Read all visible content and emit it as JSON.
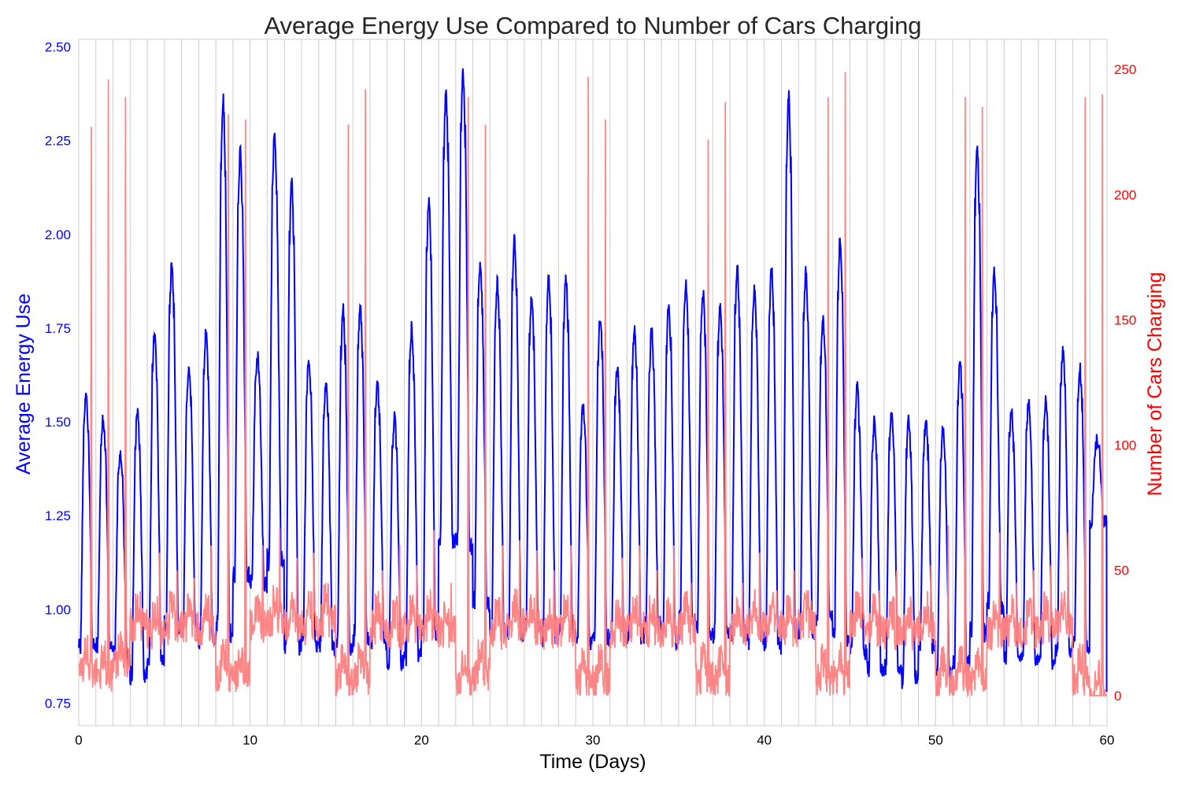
{
  "chart_data": {
    "type": "line",
    "title": "Average Energy Use Compared to Number of Cars Charging",
    "xlabel": "Time (Days)",
    "ylabel_left": "Average Energy Use",
    "ylabel_right": "Number of Cars Charging",
    "xlim": [
      0,
      60
    ],
    "ylim_left": [
      0.69,
      2.52
    ],
    "ylim_right": [
      -12,
      262
    ],
    "x_ticks": [
      0,
      10,
      20,
      30,
      40,
      50,
      60
    ],
    "x_tick_labels": [
      "0",
      "10",
      "20",
      "30",
      "40",
      "50",
      "60"
    ],
    "y_left_ticks": [
      0.75,
      1.0,
      1.25,
      1.5,
      1.75,
      2.0,
      2.25,
      2.5
    ],
    "y_left_tick_labels": [
      "0.75",
      "1.00",
      "1.25",
      "1.50",
      "1.75",
      "2.00",
      "2.25",
      "2.50"
    ],
    "y_right_ticks": [
      0,
      50,
      100,
      150,
      200,
      250
    ],
    "y_right_tick_labels": [
      "0",
      "50",
      "100",
      "150",
      "200",
      "250"
    ],
    "grid": "vertical lines at each day",
    "legend": "none",
    "colors": {
      "energy": "#0000ff",
      "cars": "#ff7f7f",
      "overlap": "#800080"
    },
    "series": [
      {
        "axis": "left",
        "color": "#0000ff",
        "daily": {
          "day": [
            0,
            1,
            2,
            3,
            4,
            5,
            6,
            7,
            8,
            9,
            10,
            11,
            12,
            13,
            14,
            15,
            16,
            17,
            18,
            19,
            20,
            21,
            22,
            23,
            24,
            25,
            26,
            27,
            28,
            29,
            30,
            31,
            32,
            33,
            34,
            35,
            36,
            37,
            38,
            39,
            40,
            41,
            42,
            43,
            44,
            45,
            46,
            47,
            48,
            49,
            50,
            51,
            52,
            53,
            54,
            55,
            56,
            57,
            58,
            59
          ],
          "min": [
            0.85,
            0.86,
            0.84,
            0.77,
            0.8,
            0.88,
            0.9,
            0.87,
            0.83,
            1.01,
            1.02,
            1.05,
            0.82,
            0.86,
            0.85,
            0.84,
            0.86,
            0.86,
            0.81,
            0.82,
            0.85,
            1.1,
            1.07,
            0.95,
            0.87,
            0.86,
            0.88,
            0.86,
            0.87,
            0.87,
            0.86,
            0.87,
            0.87,
            0.91,
            0.86,
            0.9,
            0.88,
            0.87,
            0.87,
            0.86,
            0.84,
            0.85,
            0.87,
            0.92,
            0.85,
            0.84,
            0.79,
            0.8,
            0.77,
            0.86,
            0.79,
            0.8,
            0.85,
            0.95,
            0.83,
            0.82,
            0.81,
            0.83,
            0.85,
            1.22
          ],
          "max": [
            1.57,
            1.51,
            1.42,
            1.53,
            1.74,
            1.92,
            1.65,
            1.74,
            2.36,
            2.22,
            1.68,
            2.27,
            2.14,
            1.67,
            1.6,
            1.8,
            1.81,
            1.6,
            1.51,
            1.75,
            2.09,
            2.37,
            2.43,
            1.92,
            1.87,
            1.99,
            1.83,
            1.88,
            1.89,
            1.54,
            1.78,
            1.64,
            1.74,
            1.74,
            1.82,
            1.87,
            1.85,
            1.81,
            1.91,
            1.86,
            1.91,
            2.37,
            1.9,
            1.78,
            1.98,
            1.59,
            1.5,
            1.52,
            1.5,
            1.5,
            1.48,
            1.66,
            2.23,
            1.9,
            1.53,
            1.55,
            1.56,
            1.69,
            1.64,
            1.45
          ]
        },
        "end_value": 0.78
      },
      {
        "axis": "right",
        "color": "#ff7f7f",
        "daily": {
          "day": [
            0,
            1,
            2,
            3,
            4,
            5,
            6,
            7,
            8,
            9,
            10,
            11,
            12,
            13,
            14,
            15,
            16,
            17,
            18,
            19,
            20,
            21,
            22,
            23,
            24,
            25,
            26,
            27,
            28,
            29,
            30,
            31,
            32,
            33,
            34,
            35,
            36,
            37,
            38,
            39,
            40,
            41,
            42,
            43,
            44,
            45,
            46,
            47,
            48,
            49,
            50,
            51,
            52,
            53,
            54,
            55,
            56,
            57,
            58,
            59
          ],
          "peak": [
            227,
            246,
            239,
            35,
            57,
            50,
            47,
            60,
            232,
            230,
            60,
            67,
            55,
            57,
            35,
            228,
            242,
            50,
            60,
            52,
            66,
            45,
            239,
            228,
            60,
            62,
            58,
            50,
            60,
            247,
            230,
            55,
            60,
            50,
            60,
            45,
            222,
            237,
            45,
            57,
            42,
            50,
            38,
            239,
            249,
            55,
            42,
            50,
            30,
            52,
            68,
            239,
            235,
            65,
            45,
            50,
            52,
            65,
            239,
            240
          ],
          "base": [
            10,
            8,
            12,
            28,
            25,
            27,
            28,
            26,
            8,
            8,
            28,
            30,
            28,
            27,
            30,
            6,
            7,
            27,
            25,
            27,
            28,
            25,
            6,
            8,
            25,
            28,
            27,
            25,
            26,
            6,
            6,
            25,
            27,
            26,
            25,
            27,
            7,
            6,
            26,
            28,
            27,
            26,
            28,
            6,
            7,
            28,
            26,
            25,
            25,
            27,
            5,
            6,
            6,
            25,
            26,
            25,
            27,
            28,
            6,
            0
          ]
        },
        "end_value": 0
      }
    ]
  }
}
